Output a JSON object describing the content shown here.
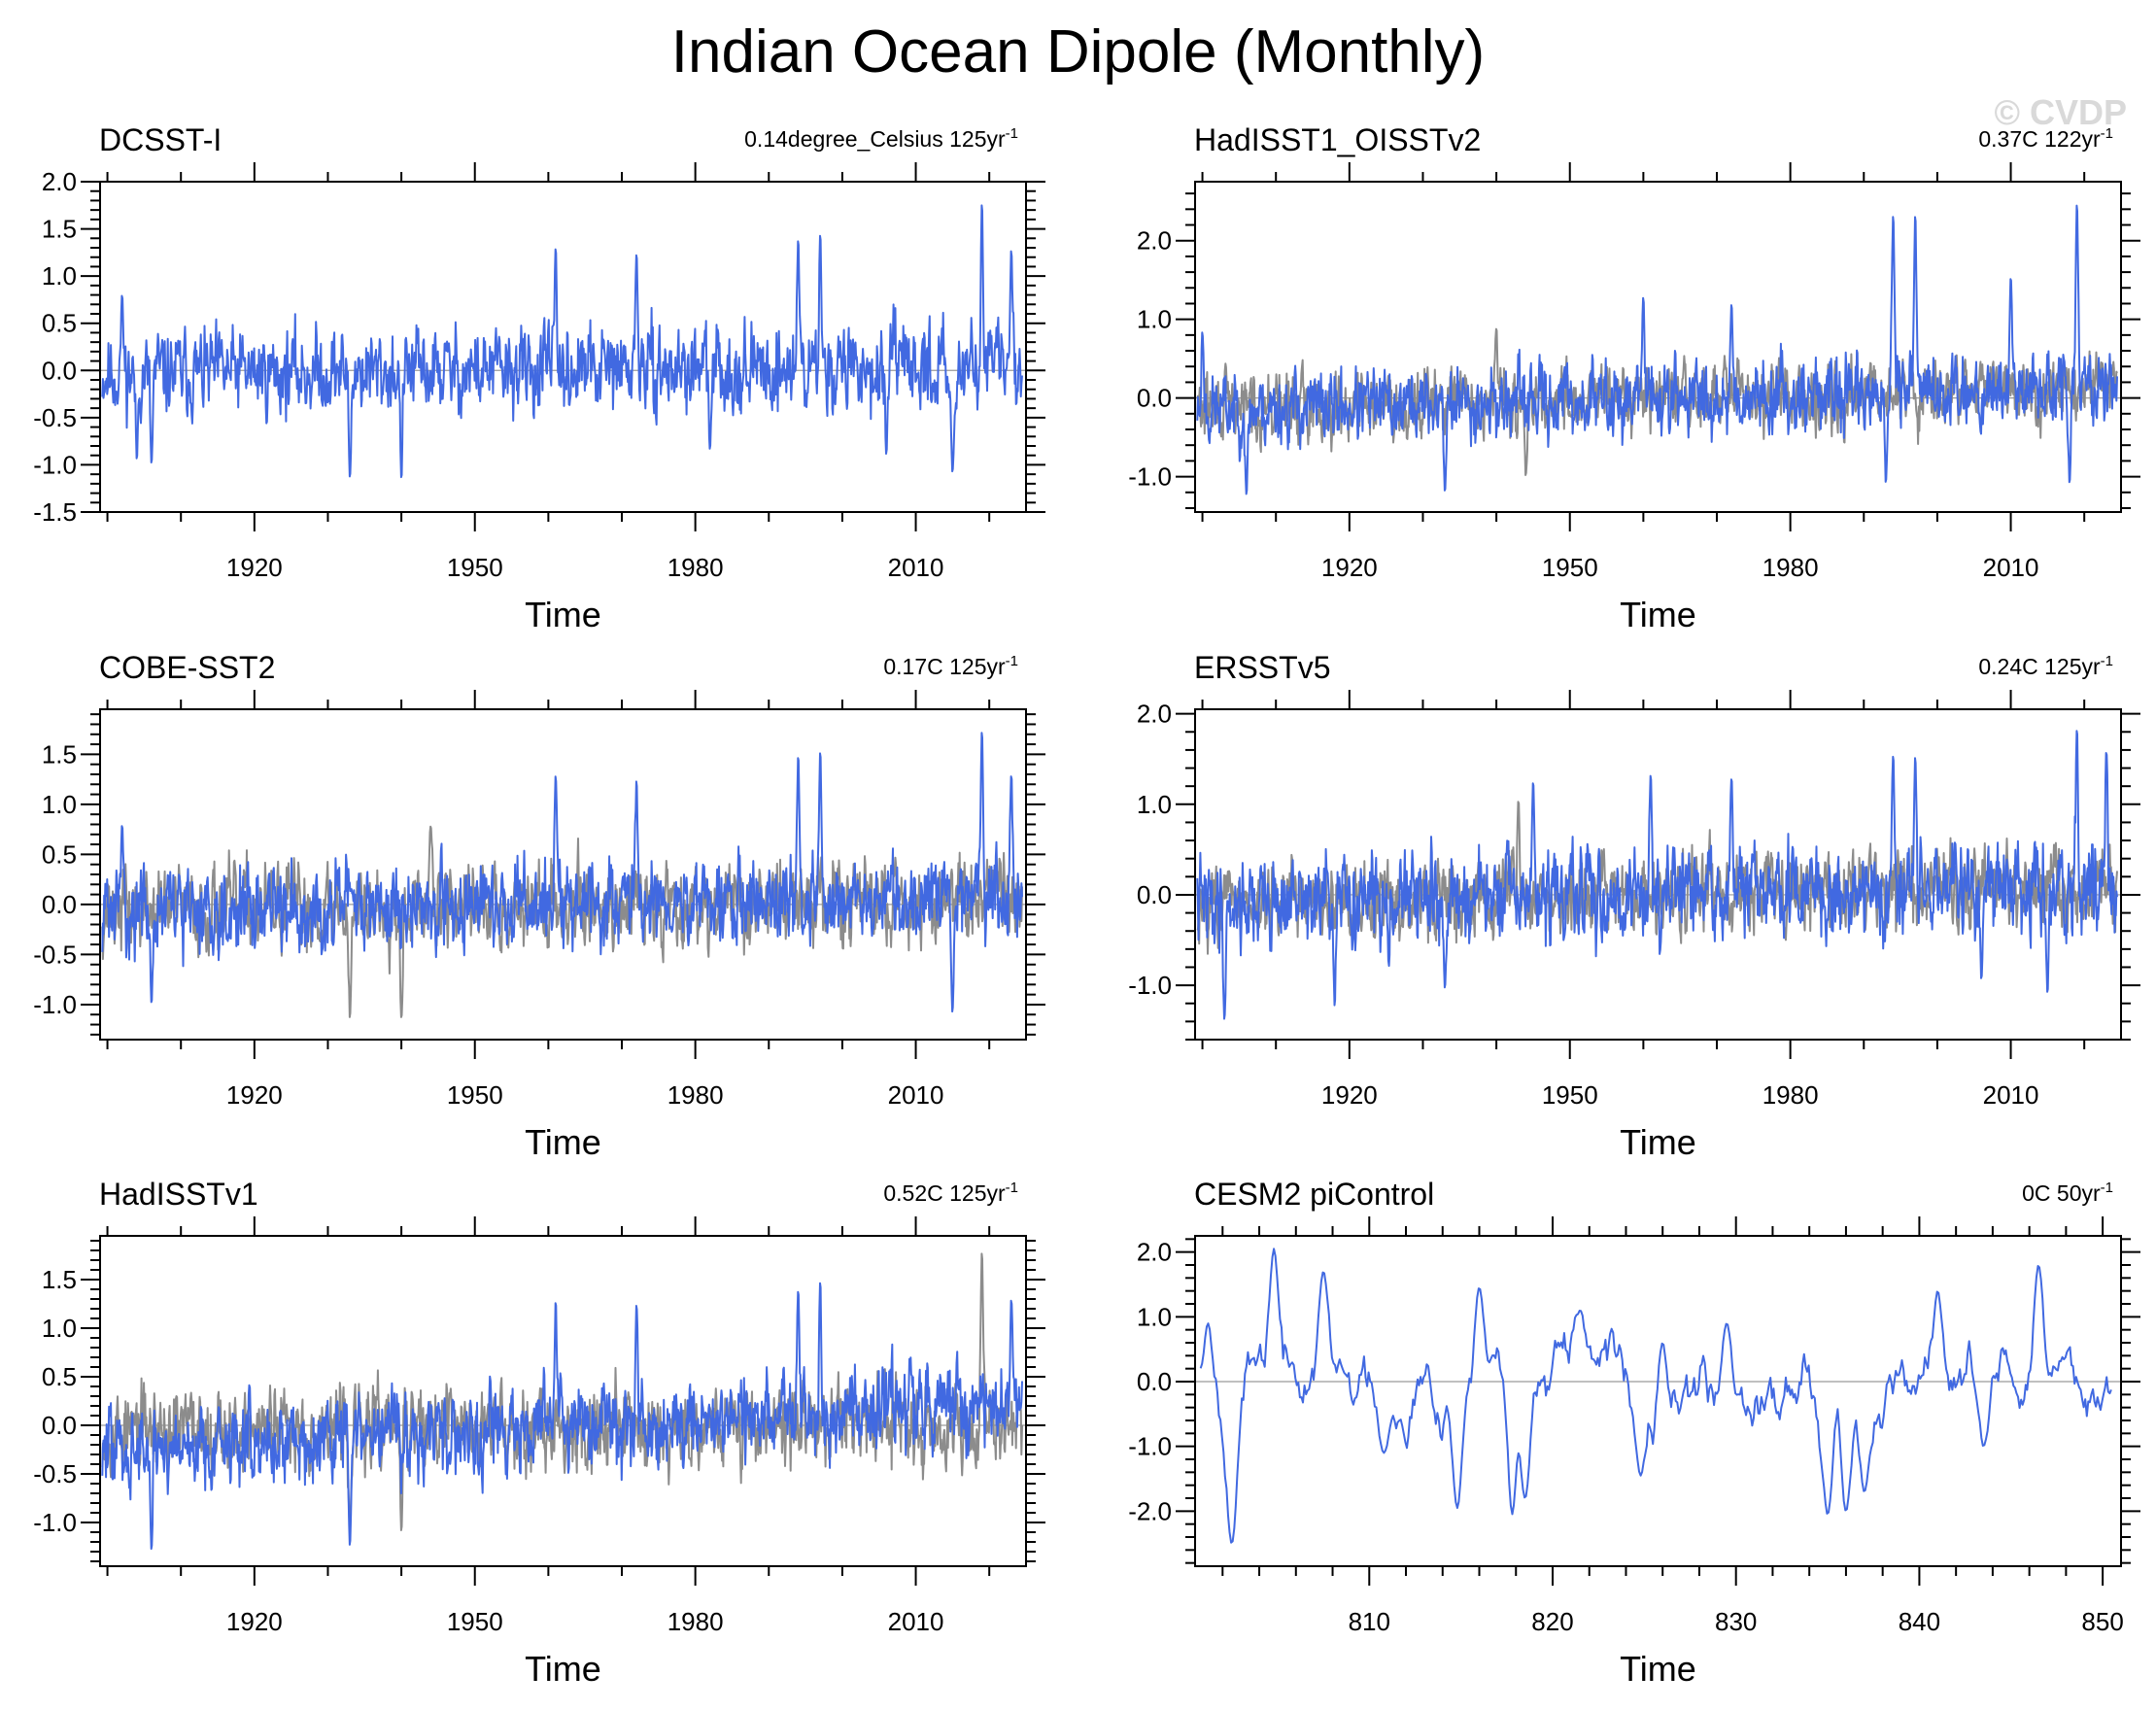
{
  "title": "Indian Ocean Dipole (Monthly)",
  "watermark": "© CVDP",
  "colors": {
    "primary_series": "#4169e1",
    "reference_series": "#8c8c8c",
    "zero_line": "#9a9a9a",
    "frame": "#000000"
  },
  "chart_data": [
    {
      "type": "line",
      "title": "DCSST-I",
      "trend_label": "0.14degree_Celsius 125yr",
      "trend_sup": "-1",
      "xlabel": "Time",
      "ylabel": "",
      "xlim": [
        1899,
        2025
      ],
      "ylim": [
        -1.5,
        2.0
      ],
      "xticks": [
        1920,
        1950,
        1980,
        2010
      ],
      "yticks": [
        -1.5,
        -1.0,
        -0.5,
        0.0,
        0.5,
        1.0,
        1.5,
        2.0
      ],
      "ytick_labels": [
        "-1.5",
        "-1.0",
        "-0.5",
        "0.0",
        "0.5",
        "1.0",
        "1.5",
        "2.0"
      ],
      "series": [
        {
          "role": "primary",
          "seed": 11,
          "amplitude": 0.32,
          "drift": 0.0005,
          "peaks": [
            [
              1902,
              0.8
            ],
            [
              1904,
              -0.95
            ],
            [
              1906,
              -1.0
            ],
            [
              1933,
              -1.15
            ],
            [
              1940,
              -1.15
            ],
            [
              1961,
              1.3
            ],
            [
              1972,
              1.25
            ],
            [
              1982,
              -0.85
            ],
            [
              1994,
              1.4
            ],
            [
              1997,
              1.45
            ],
            [
              2006,
              -0.9
            ],
            [
              2015,
              -1.1
            ],
            [
              2019,
              1.8
            ],
            [
              2023,
              1.3
            ]
          ]
        }
      ]
    },
    {
      "type": "line",
      "title": "HadISST1_OISSTv2",
      "trend_label": "0.37C 122yr",
      "trend_sup": "-1",
      "xlabel": "Time",
      "ylabel": "",
      "xlim": [
        1899,
        2025
      ],
      "ylim": [
        -1.45,
        2.75
      ],
      "xticks": [
        1920,
        1950,
        1980,
        2010
      ],
      "yticks": [
        -1.0,
        0.0,
        1.0,
        2.0
      ],
      "ytick_labels": [
        "-1.0",
        "0.0",
        "1.0",
        "2.0"
      ],
      "series": [
        {
          "role": "reference",
          "seed": 29,
          "amplitude": 0.3,
          "drift": 0.002,
          "peaks": [
            [
              1940,
              0.9
            ],
            [
              1944,
              -1.0
            ]
          ]
        },
        {
          "role": "primary",
          "seed": 23,
          "amplitude": 0.33,
          "drift": 0.0025,
          "peaks": [
            [
              1900,
              0.85
            ],
            [
              1906,
              -1.25
            ],
            [
              1933,
              -1.2
            ],
            [
              1960,
              1.3
            ],
            [
              1972,
              1.2
            ],
            [
              1993,
              -1.1
            ],
            [
              1994,
              2.35
            ],
            [
              1997,
              2.35
            ],
            [
              2010,
              1.55
            ],
            [
              2018,
              -1.1
            ],
            [
              2019,
              2.5
            ]
          ]
        }
      ]
    },
    {
      "type": "line",
      "title": "COBE-SST2",
      "trend_label": "0.17C 125yr",
      "trend_sup": "-1",
      "xlabel": "Time",
      "ylabel": "",
      "xlim": [
        1899,
        2025
      ],
      "ylim": [
        -1.35,
        1.95
      ],
      "xticks": [
        1920,
        1950,
        1980,
        2010
      ],
      "yticks": [
        -1.0,
        -0.5,
        0.0,
        0.5,
        1.0,
        1.5
      ],
      "ytick_labels": [
        "-1.0",
        "-0.5",
        "0.0",
        "0.5",
        "1.0",
        "1.5"
      ],
      "series": [
        {
          "role": "reference",
          "seed": 37,
          "amplitude": 0.3,
          "drift": 0.0008,
          "peaks": [
            [
              1933,
              -1.15
            ],
            [
              1940,
              -1.15
            ],
            [
              1944,
              0.8
            ]
          ]
        },
        {
          "role": "primary",
          "seed": 31,
          "amplitude": 0.3,
          "drift": 0.001,
          "peaks": [
            [
              1902,
              0.8
            ],
            [
              1906,
              -1.0
            ],
            [
              1961,
              1.3
            ],
            [
              1972,
              1.25
            ],
            [
              1994,
              1.5
            ],
            [
              1997,
              1.55
            ],
            [
              2015,
              -1.1
            ],
            [
              2019,
              1.75
            ],
            [
              2023,
              1.3
            ]
          ]
        }
      ]
    },
    {
      "type": "line",
      "title": "ERSSTv5",
      "trend_label": "0.24C 125yr",
      "trend_sup": "-1",
      "xlabel": "Time",
      "ylabel": "",
      "xlim": [
        1899,
        2025
      ],
      "ylim": [
        -1.6,
        2.05
      ],
      "xticks": [
        1920,
        1950,
        1980,
        2010
      ],
      "yticks": [
        -1.0,
        0.0,
        1.0,
        2.0
      ],
      "ytick_labels": [
        "-1.0",
        "0.0",
        "1.0",
        "2.0"
      ],
      "series": [
        {
          "role": "reference",
          "seed": 43,
          "amplitude": 0.3,
          "drift": 0.0015,
          "peaks": [
            [
              1943,
              1.05
            ]
          ]
        },
        {
          "role": "primary",
          "seed": 41,
          "amplitude": 0.35,
          "drift": 0.0015,
          "peaks": [
            [
              1903,
              -1.4
            ],
            [
              1918,
              -1.25
            ],
            [
              1933,
              -1.05
            ],
            [
              1945,
              1.25
            ],
            [
              1961,
              1.35
            ],
            [
              1972,
              1.3
            ],
            [
              1994,
              1.55
            ],
            [
              1997,
              1.55
            ],
            [
              2006,
              -0.95
            ],
            [
              2015,
              -1.1
            ],
            [
              2019,
              1.85
            ],
            [
              2023,
              1.6
            ]
          ]
        }
      ]
    },
    {
      "type": "line",
      "title": "HadISSTv1",
      "trend_label": "0.52C 125yr",
      "trend_sup": "-1",
      "xlabel": "Time",
      "ylabel": "",
      "xlim": [
        1899,
        2025
      ],
      "ylim": [
        -1.45,
        1.95
      ],
      "xticks": [
        1920,
        1950,
        1980,
        2010
      ],
      "yticks": [
        -1.0,
        -0.5,
        0.0,
        0.5,
        1.0,
        1.5
      ],
      "ytick_labels": [
        "-1.0",
        "-0.5",
        "0.0",
        "0.5",
        "1.0",
        "1.5"
      ],
      "series": [
        {
          "role": "reference",
          "seed": 53,
          "amplitude": 0.3,
          "drift": 0.0007,
          "peaks": [
            [
              1933,
              -1.1
            ],
            [
              1940,
              -1.1
            ],
            [
              2019,
              1.8
            ]
          ]
        },
        {
          "role": "primary",
          "seed": 47,
          "amplitude": 0.31,
          "drift": 0.004,
          "peaks": [
            [
              1906,
              -1.3
            ],
            [
              1933,
              -1.25
            ],
            [
              1961,
              1.3
            ],
            [
              1972,
              1.25
            ],
            [
              1994,
              1.4
            ],
            [
              1997,
              1.5
            ],
            [
              2023,
              1.3
            ]
          ]
        }
      ]
    },
    {
      "type": "line",
      "title": "CESM2 piControl",
      "trend_label": "0C 50yr",
      "trend_sup": "-1",
      "xlabel": "Time",
      "ylabel": "",
      "xlim": [
        800.5,
        851
      ],
      "ylim": [
        -2.85,
        2.25
      ],
      "xticks": [
        810,
        820,
        830,
        840,
        850
      ],
      "yticks": [
        -2.0,
        -1.0,
        0.0,
        1.0,
        2.0
      ],
      "ytick_labels": [
        "-2.0",
        "-1.0",
        "0.0",
        "1.0",
        "2.0"
      ],
      "series": [
        {
          "role": "primary",
          "seed": 67,
          "amplitude": 0.55,
          "drift": 0.0,
          "smooth": 0.88,
          "peaks": [
            [
              801.2,
              0.9
            ],
            [
              802.5,
              -2.5
            ],
            [
              804.8,
              2.05
            ],
            [
              807.5,
              1.7
            ],
            [
              810.8,
              -1.1
            ],
            [
              814.8,
              -1.95
            ],
            [
              816,
              1.45
            ],
            [
              817.8,
              -2.05
            ],
            [
              818.5,
              -1.8
            ],
            [
              821.5,
              1.1
            ],
            [
              824.8,
              -1.45
            ],
            [
              826,
              0.6
            ],
            [
              829.5,
              0.9
            ],
            [
              835,
              -2.05
            ],
            [
              836,
              -2.0
            ],
            [
              837,
              -1.7
            ],
            [
              841,
              1.4
            ],
            [
              846.5,
              1.8
            ],
            [
              843.5,
              -1.0
            ]
          ]
        }
      ]
    }
  ]
}
